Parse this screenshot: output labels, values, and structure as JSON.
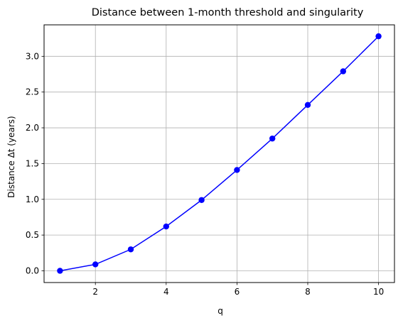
{
  "chart_data": {
    "type": "line",
    "title": "Distance between 1-month threshold and singularity",
    "xlabel": "q",
    "ylabel": "Distance Δt (years)",
    "xlim": [
      0.55,
      10.45
    ],
    "ylim": [
      -0.164,
      3.44
    ],
    "xticks": [
      2,
      4,
      6,
      8,
      10
    ],
    "yticks": [
      0.0,
      0.5,
      1.0,
      1.5,
      2.0,
      2.5,
      3.0
    ],
    "xtick_labels": [
      "2",
      "4",
      "6",
      "8",
      "10"
    ],
    "ytick_labels": [
      "0.0",
      "0.5",
      "1.0",
      "1.5",
      "2.0",
      "2.5",
      "3.0"
    ],
    "grid": true,
    "legend": false,
    "series": [
      {
        "color": "#0000ff",
        "marker": "circle",
        "x": [
          1,
          2,
          3,
          4,
          5,
          6,
          7,
          8,
          9,
          10
        ],
        "y": [
          0.0,
          0.09,
          0.3,
          0.62,
          0.99,
          1.41,
          1.85,
          2.32,
          2.79,
          3.28
        ]
      }
    ]
  }
}
